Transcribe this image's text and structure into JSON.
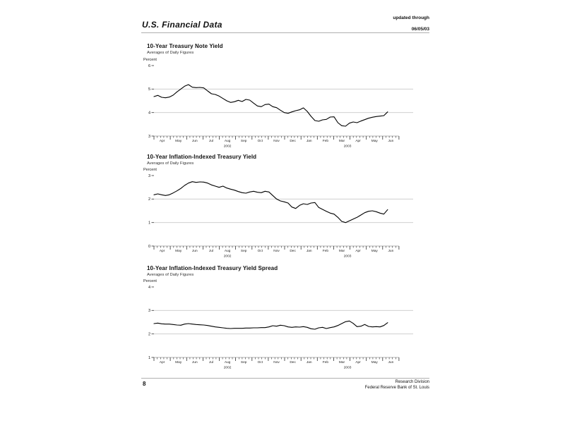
{
  "header": {
    "title": "U.S. Financial Data",
    "updated_line1": "updated through",
    "updated_line2": "06/05/03"
  },
  "footer": {
    "page_number": "8",
    "org_line1": "Research Division",
    "org_line2": "Federal Reserve Bank of St. Louis"
  },
  "colors": {
    "text": "#111111",
    "grid": "#c9c9c9",
    "axis": "#999999",
    "tick": "#333333",
    "line": "#000000",
    "rule": "#b0b0b0"
  },
  "chart_data": [
    {
      "type": "line",
      "title": "10-Year Treasury Note Yield",
      "subtitle": "Averages of Daily Figures",
      "ylabel": "Percent",
      "ylim": [
        3,
        6
      ],
      "yticks": [
        3,
        4,
        5,
        6
      ],
      "gridlines": [
        4,
        5
      ],
      "x_months": [
        "Apr",
        "May",
        "Jun",
        "Jul",
        "Aug",
        "Sep",
        "Oct",
        "Nov",
        "Dec",
        "Jan",
        "Feb",
        "Mar",
        "Apr",
        "May",
        "Jun"
      ],
      "years": [
        {
          "label": "2002",
          "month_index": 4.5
        },
        {
          "label": "2003",
          "month_index": 11.85
        }
      ],
      "frequency": "weekly",
      "values": [
        4.68,
        4.73,
        4.65,
        4.63,
        4.66,
        4.74,
        4.88,
        5.0,
        5.12,
        5.19,
        5.08,
        5.06,
        5.07,
        5.05,
        4.92,
        4.8,
        4.77,
        4.7,
        4.6,
        4.5,
        4.43,
        4.46,
        4.52,
        4.47,
        4.56,
        4.53,
        4.4,
        4.28,
        4.25,
        4.34,
        4.36,
        4.25,
        4.21,
        4.1,
        4.0,
        3.97,
        4.03,
        4.08,
        4.12,
        4.2,
        4.05,
        3.84,
        3.66,
        3.63,
        3.69,
        3.71,
        3.81,
        3.82,
        3.57,
        3.44,
        3.42,
        3.55,
        3.6,
        3.57,
        3.64,
        3.7,
        3.76,
        3.8,
        3.83,
        3.85,
        3.87,
        4.03
      ]
    },
    {
      "type": "line",
      "title": "10-Year Inflation-Indexed Treasury Yield",
      "subtitle": "Averages of Daily Figures",
      "ylabel": "Percent",
      "ylim": [
        0,
        3
      ],
      "yticks": [
        0,
        1,
        2,
        3
      ],
      "gridlines": [
        1,
        2
      ],
      "x_months": [
        "Apr",
        "May",
        "Jun",
        "Jul",
        "Aug",
        "Sep",
        "Oct",
        "Nov",
        "Dec",
        "Jan",
        "Feb",
        "Mar",
        "Apr",
        "May",
        "Jun"
      ],
      "years": [
        {
          "label": "2002",
          "month_index": 4.5
        },
        {
          "label": "2003",
          "month_index": 11.85
        }
      ],
      "frequency": "weekly",
      "values": [
        2.18,
        2.22,
        2.18,
        2.15,
        2.18,
        2.26,
        2.35,
        2.45,
        2.58,
        2.68,
        2.74,
        2.71,
        2.73,
        2.72,
        2.68,
        2.6,
        2.55,
        2.5,
        2.55,
        2.47,
        2.42,
        2.38,
        2.32,
        2.27,
        2.25,
        2.3,
        2.33,
        2.29,
        2.27,
        2.33,
        2.3,
        2.15,
        2.0,
        1.92,
        1.88,
        1.83,
        1.66,
        1.6,
        1.73,
        1.8,
        1.77,
        1.83,
        1.85,
        1.64,
        1.56,
        1.48,
        1.4,
        1.36,
        1.22,
        1.05,
        1.0,
        1.07,
        1.15,
        1.22,
        1.32,
        1.42,
        1.48,
        1.5,
        1.46,
        1.4,
        1.36,
        1.55
      ]
    },
    {
      "type": "line",
      "title": "10-Year Inflation-Indexed Treasury Yield Spread",
      "subtitle": "Averages of Daily Figures",
      "ylabel": "Percent",
      "ylim": [
        1,
        4
      ],
      "yticks": [
        1,
        2,
        3,
        4
      ],
      "gridlines": [
        2,
        3
      ],
      "x_months": [
        "Apr",
        "May",
        "Jun",
        "Jul",
        "Aug",
        "Sep",
        "Oct",
        "Nov",
        "Dec",
        "Jan",
        "Feb",
        "Mar",
        "Apr",
        "May",
        "Jun"
      ],
      "years": [
        {
          "label": "2002",
          "month_index": 4.5
        },
        {
          "label": "2003",
          "month_index": 11.85
        }
      ],
      "frequency": "weekly",
      "values": [
        2.44,
        2.46,
        2.43,
        2.42,
        2.42,
        2.4,
        2.38,
        2.37,
        2.42,
        2.44,
        2.42,
        2.4,
        2.39,
        2.38,
        2.36,
        2.33,
        2.3,
        2.28,
        2.26,
        2.24,
        2.23,
        2.24,
        2.24,
        2.24,
        2.25,
        2.25,
        2.26,
        2.26,
        2.27,
        2.27,
        2.3,
        2.35,
        2.33,
        2.37,
        2.35,
        2.3,
        2.28,
        2.3,
        2.29,
        2.31,
        2.28,
        2.22,
        2.2,
        2.26,
        2.28,
        2.23,
        2.27,
        2.3,
        2.36,
        2.44,
        2.52,
        2.55,
        2.45,
        2.31,
        2.33,
        2.4,
        2.32,
        2.3,
        2.31,
        2.3,
        2.36,
        2.48
      ]
    }
  ]
}
